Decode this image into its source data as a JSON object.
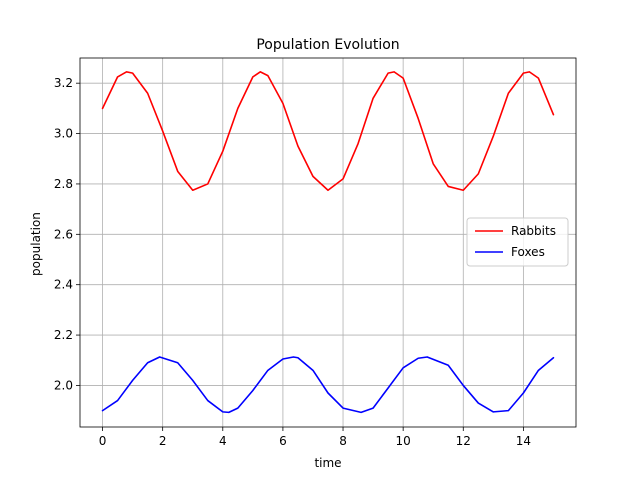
{
  "chart_data": {
    "type": "line",
    "title": "Population Evolution",
    "xlabel": "time",
    "ylabel": "population",
    "xlim": [
      -0.75,
      15.75
    ],
    "ylim": [
      1.835,
      3.3
    ],
    "xticks": [
      0,
      2,
      4,
      6,
      8,
      10,
      12,
      14
    ],
    "yticks": [
      2.0,
      2.2,
      2.4,
      2.6,
      2.8,
      3.0,
      3.2
    ],
    "grid": true,
    "legend": "center-right",
    "series": [
      {
        "name": "Rabbits",
        "color": "#ff0000",
        "x": [
          0,
          0.5,
          0.8,
          1.0,
          1.5,
          2.0,
          2.5,
          3.0,
          3.5,
          4.0,
          4.5,
          5.0,
          5.25,
          5.5,
          6.0,
          6.5,
          7.0,
          7.5,
          8.0,
          8.5,
          9.0,
          9.5,
          9.7,
          10.0,
          10.5,
          11.0,
          11.5,
          12.0,
          12.5,
          13.0,
          13.5,
          14.0,
          14.2,
          14.5,
          15.0
        ],
        "y": [
          3.1,
          3.225,
          3.245,
          3.24,
          3.16,
          3.01,
          2.85,
          2.775,
          2.8,
          2.93,
          3.1,
          3.225,
          3.245,
          3.23,
          3.12,
          2.95,
          2.83,
          2.775,
          2.82,
          2.96,
          3.14,
          3.24,
          3.245,
          3.22,
          3.06,
          2.88,
          2.79,
          2.775,
          2.84,
          2.99,
          3.16,
          3.24,
          3.245,
          3.22,
          3.075
        ]
      },
      {
        "name": "Foxes",
        "color": "#0000ff",
        "x": [
          0,
          0.5,
          1.0,
          1.5,
          1.9,
          2.5,
          3.0,
          3.5,
          4.0,
          4.2,
          4.5,
          5.0,
          5.5,
          6.0,
          6.35,
          6.5,
          7.0,
          7.5,
          8.0,
          8.6,
          9.0,
          9.5,
          10.0,
          10.5,
          10.8,
          11.5,
          12.0,
          12.5,
          13.0,
          13.5,
          14.0,
          14.5,
          15.0
        ],
        "y": [
          1.9,
          1.94,
          2.02,
          2.09,
          2.113,
          2.09,
          2.02,
          1.94,
          1.895,
          1.893,
          1.91,
          1.98,
          2.06,
          2.105,
          2.113,
          2.11,
          2.06,
          1.97,
          1.91,
          1.893,
          1.91,
          1.99,
          2.07,
          2.108,
          2.113,
          2.08,
          2.0,
          1.93,
          1.895,
          1.9,
          1.97,
          2.06,
          2.11
        ]
      }
    ]
  }
}
